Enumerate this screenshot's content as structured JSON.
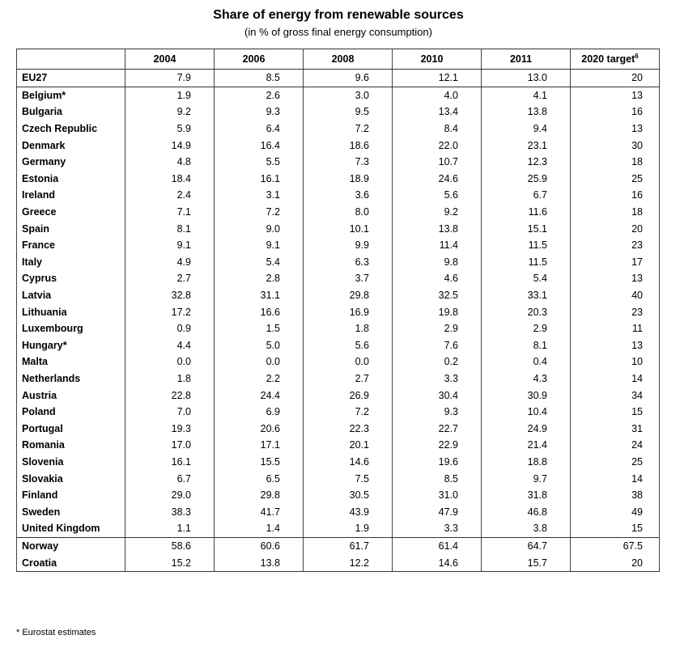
{
  "title": "Share of energy from renewable sources",
  "subtitle": "(in % of gross final energy consumption)",
  "columns": [
    "2004",
    "2006",
    "2008",
    "2010",
    "2011",
    "2020 target"
  ],
  "target_footnote_mark": "6",
  "rows": [
    {
      "name": "EU27",
      "values": [
        "7.9",
        "8.5",
        "9.6",
        "12.1",
        "13.0",
        "20"
      ]
    },
    {
      "name": "Belgium*",
      "values": [
        "1.9",
        "2.6",
        "3.0",
        "4.0",
        "4.1",
        "13"
      ]
    },
    {
      "name": "Bulgaria",
      "values": [
        "9.2",
        "9.3",
        "9.5",
        "13.4",
        "13.8",
        "16"
      ]
    },
    {
      "name": "Czech Republic",
      "values": [
        "5.9",
        "6.4",
        "7.2",
        "8.4",
        "9.4",
        "13"
      ]
    },
    {
      "name": "Denmark",
      "values": [
        "14.9",
        "16.4",
        "18.6",
        "22.0",
        "23.1",
        "30"
      ]
    },
    {
      "name": "Germany",
      "values": [
        "4.8",
        "5.5",
        "7.3",
        "10.7",
        "12.3",
        "18"
      ]
    },
    {
      "name": "Estonia",
      "values": [
        "18.4",
        "16.1",
        "18.9",
        "24.6",
        "25.9",
        "25"
      ]
    },
    {
      "name": "Ireland",
      "values": [
        "2.4",
        "3.1",
        "3.6",
        "5.6",
        "6.7",
        "16"
      ]
    },
    {
      "name": "Greece",
      "values": [
        "7.1",
        "7.2",
        "8.0",
        "9.2",
        "11.6",
        "18"
      ]
    },
    {
      "name": "Spain",
      "values": [
        "8.1",
        "9.0",
        "10.1",
        "13.8",
        "15.1",
        "20"
      ]
    },
    {
      "name": "France",
      "values": [
        "9.1",
        "9.1",
        "9.9",
        "11.4",
        "11.5",
        "23"
      ]
    },
    {
      "name": "Italy",
      "values": [
        "4.9",
        "5.4",
        "6.3",
        "9.8",
        "11.5",
        "17"
      ]
    },
    {
      "name": "Cyprus",
      "values": [
        "2.7",
        "2.8",
        "3.7",
        "4.6",
        "5.4",
        "13"
      ]
    },
    {
      "name": "Latvia",
      "values": [
        "32.8",
        "31.1",
        "29.8",
        "32.5",
        "33.1",
        "40"
      ]
    },
    {
      "name": "Lithuania",
      "values": [
        "17.2",
        "16.6",
        "16.9",
        "19.8",
        "20.3",
        "23"
      ]
    },
    {
      "name": "Luxembourg",
      "values": [
        "0.9",
        "1.5",
        "1.8",
        "2.9",
        "2.9",
        "11"
      ]
    },
    {
      "name": "Hungary*",
      "values": [
        "4.4",
        "5.0",
        "5.6",
        "7.6",
        "8.1",
        "13"
      ]
    },
    {
      "name": "Malta",
      "values": [
        "0.0",
        "0.0",
        "0.0",
        "0.2",
        "0.4",
        "10"
      ]
    },
    {
      "name": "Netherlands",
      "values": [
        "1.8",
        "2.2",
        "2.7",
        "3.3",
        "4.3",
        "14"
      ]
    },
    {
      "name": "Austria",
      "values": [
        "22.8",
        "24.4",
        "26.9",
        "30.4",
        "30.9",
        "34"
      ]
    },
    {
      "name": "Poland",
      "values": [
        "7.0",
        "6.9",
        "7.2",
        "9.3",
        "10.4",
        "15"
      ]
    },
    {
      "name": "Portugal",
      "values": [
        "19.3",
        "20.6",
        "22.3",
        "22.7",
        "24.9",
        "31"
      ]
    },
    {
      "name": "Romania",
      "values": [
        "17.0",
        "17.1",
        "20.1",
        "22.9",
        "21.4",
        "24"
      ]
    },
    {
      "name": "Slovenia",
      "values": [
        "16.1",
        "15.5",
        "14.6",
        "19.6",
        "18.8",
        "25"
      ]
    },
    {
      "name": "Slovakia",
      "values": [
        "6.7",
        "6.5",
        "7.5",
        "8.5",
        "9.7",
        "14"
      ]
    },
    {
      "name": "Finland",
      "values": [
        "29.0",
        "29.8",
        "30.5",
        "31.0",
        "31.8",
        "38"
      ]
    },
    {
      "name": "Sweden",
      "values": [
        "38.3",
        "41.7",
        "43.9",
        "47.9",
        "46.8",
        "49"
      ]
    },
    {
      "name": "United Kingdom",
      "values": [
        "1.1",
        "1.4",
        "1.9",
        "3.3",
        "3.8",
        "15"
      ]
    },
    {
      "name": "Norway",
      "values": [
        "58.6",
        "60.6",
        "61.7",
        "61.4",
        "64.7",
        "67.5"
      ]
    },
    {
      "name": "Croatia",
      "values": [
        "15.2",
        "13.8",
        "12.2",
        "14.6",
        "15.7",
        "20"
      ]
    }
  ],
  "footnote": "* Eurostat estimates"
}
